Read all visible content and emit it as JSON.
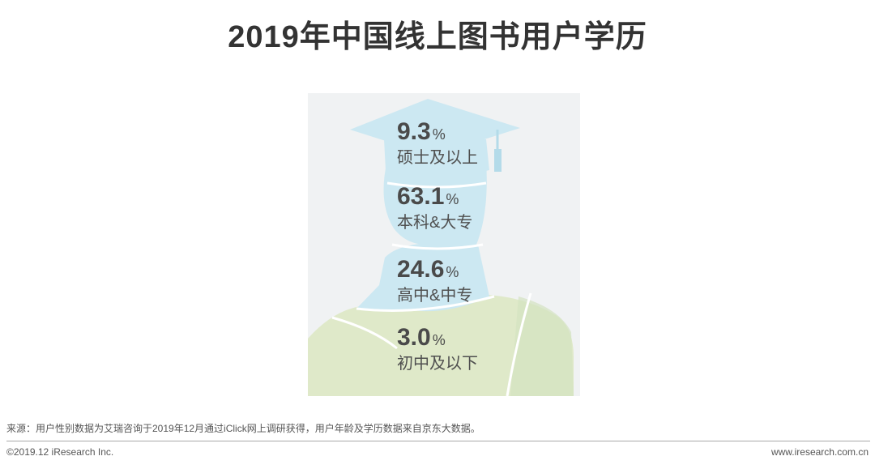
{
  "page": {
    "title": "2019年中国线上图书用户学历",
    "source": "来源：用户性别数据为艾瑞咨询于2019年12月通过iClick网上调研获得，用户年龄及学历数据来自京东大数据。",
    "copyright": "©2019.12 iResearch Inc.",
    "website": "www.iresearch.com.cn"
  },
  "chart_data": {
    "type": "pictorial",
    "title": "2019年中国线上图书用户学历",
    "unit": "%",
    "categories": [
      "硕士及以上",
      "本科&大专",
      "高中&中专",
      "初中及以下"
    ],
    "values": [
      9.3,
      63.1,
      24.6,
      3.0
    ],
    "value_labels": [
      "9.3",
      "63.1",
      "24.6",
      "3.0"
    ],
    "colors": {
      "upper": "#cce8f2",
      "lower": "#dfe9c9",
      "background": "#f0f2f3"
    }
  }
}
